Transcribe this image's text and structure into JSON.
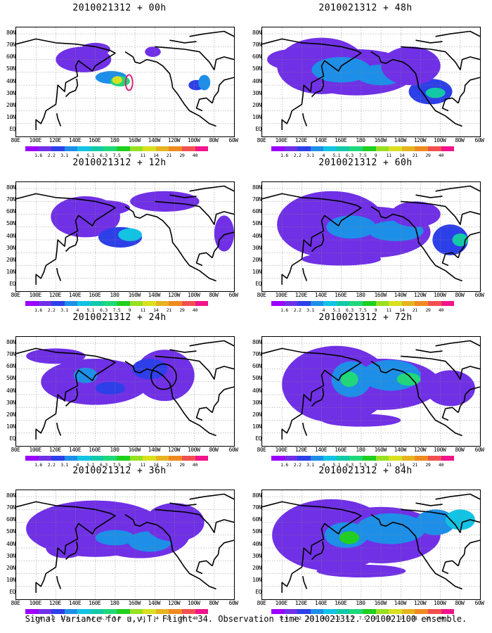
{
  "panels": [
    {
      "title": "2010021312 + 00h"
    },
    {
      "title": "2010021312 + 48h"
    },
    {
      "title": "2010021312 + 12h"
    },
    {
      "title": "2010021312 + 60h"
    },
    {
      "title": "2010021312 + 24h"
    },
    {
      "title": "2010021312 + 72h"
    },
    {
      "title": "2010021312 + 36h"
    },
    {
      "title": "2010021312 + 84h"
    }
  ],
  "lat_labels": [
    "80N",
    "70N",
    "60N",
    "50N",
    "40N",
    "30N",
    "20N",
    "10N",
    "EQ"
  ],
  "lon_labels": [
    "80E",
    "100E",
    "120E",
    "140E",
    "160E",
    "180",
    "160W",
    "140W",
    "120W",
    "100W",
    "80W",
    "60W"
  ],
  "colorbar": {
    "levels": [
      "1.6",
      "2.2",
      "3.1",
      "4",
      "5.1",
      "6.3",
      "7.5",
      "9",
      "11",
      "14",
      "21",
      "29",
      "40"
    ],
    "colors": [
      "#9b00ff",
      "#7030e6",
      "#2d3fe8",
      "#1d8fe8",
      "#12c3e4",
      "#12c9a8",
      "#1fd87a",
      "#20d020",
      "#98e020",
      "#d9e020",
      "#e6b420",
      "#ef8a20",
      "#f25050",
      "#f2148a"
    ]
  },
  "caption": "Signal Variance for u,v,T. Flight 34. Observation time 2010021312. 2010021100 ensemble."
}
